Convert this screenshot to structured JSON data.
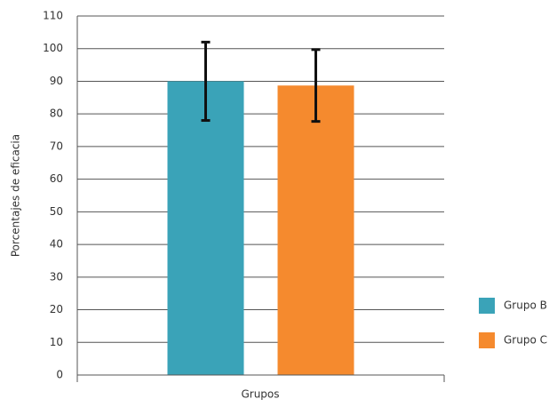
{
  "chart_data": {
    "type": "bar",
    "y_label": "Porcentajes de eficacia",
    "x_label": "Grupos",
    "categories": [
      null
    ],
    "series": [
      {
        "name": "Grupo B",
        "color": "#3aa3b8",
        "values": [
          90
        ],
        "errors": [
          12
        ]
      },
      {
        "name": "Grupo C",
        "color": "#f58a2e",
        "values": [
          88.7
        ],
        "errors": [
          11
        ]
      }
    ],
    "ylim": [
      0,
      110
    ],
    "yticks": [
      0,
      10,
      20,
      30,
      40,
      50,
      60,
      70,
      80,
      90,
      100,
      110
    ],
    "grid": true,
    "legend": "right"
  }
}
